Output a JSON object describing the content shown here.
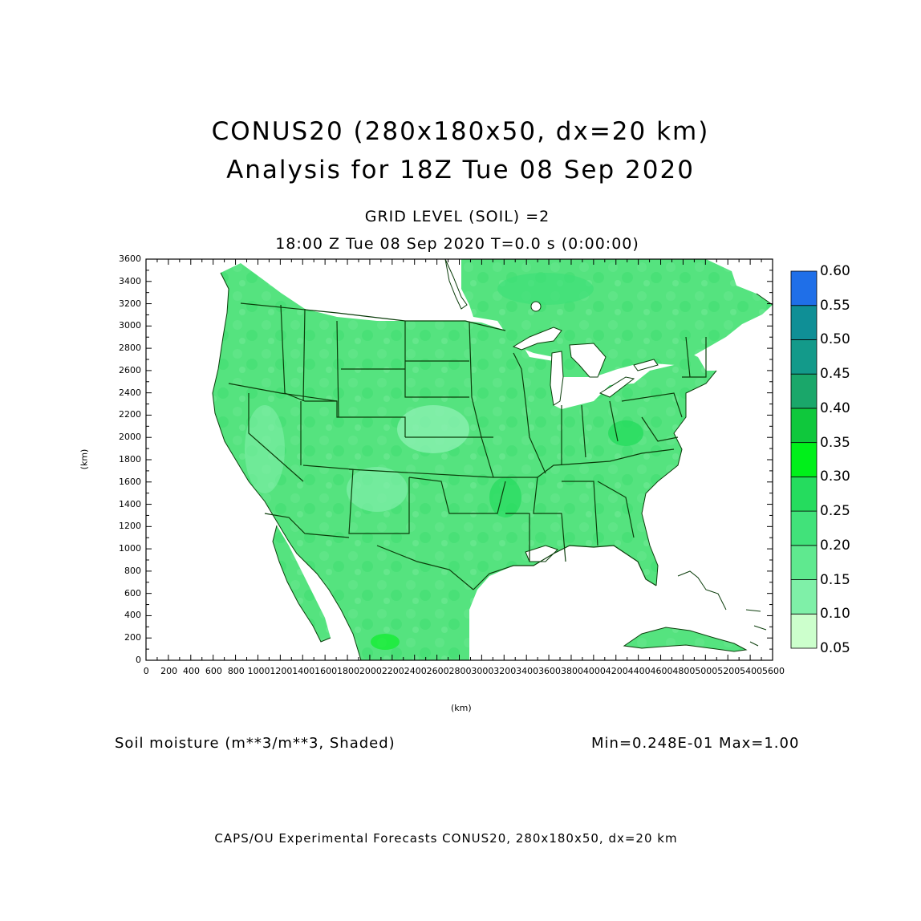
{
  "header": {
    "title_line1": "CONUS20 (280x180x50, dx=20 km)",
    "title_line2": "Analysis for 18Z Tue 08 Sep 2020",
    "grid_level": "GRID LEVEL (SOIL) =2",
    "time_line": "18:00 Z Tue 08 Sep 2020    T=0.0 s (0:00:00)"
  },
  "axes": {
    "x_label": "(km)",
    "y_label": "(km)",
    "x_ticks": [
      "0",
      "200",
      "400",
      "600",
      "800",
      "1000",
      "1200",
      "1400",
      "1600",
      "1800",
      "2000",
      "2200",
      "2400",
      "2600",
      "2800",
      "3000",
      "3200",
      "3400",
      "3600",
      "3800",
      "4000",
      "4200",
      "4400",
      "4600",
      "4800",
      "5000",
      "5200",
      "5400",
      "5600"
    ],
    "y_ticks": [
      "0",
      "200",
      "400",
      "600",
      "800",
      "1000",
      "1200",
      "1400",
      "1600",
      "1800",
      "2000",
      "2200",
      "2400",
      "2600",
      "2800",
      "3000",
      "3200",
      "3400",
      "3600"
    ],
    "x_range": [
      0,
      5600
    ],
    "y_range": [
      0,
      3600
    ]
  },
  "colorbar": {
    "levels": [
      "0.05",
      "0.10",
      "0.15",
      "0.20",
      "0.25",
      "0.30",
      "0.35",
      "0.40",
      "0.45",
      "0.50",
      "0.55",
      "0.60"
    ],
    "colors": [
      "#ccffcc",
      "#a6f7c2",
      "#7ff0a8",
      "#5fe98f",
      "#41e27a",
      "#25dc5e",
      "#00f01a",
      "#0fc83c",
      "#1aa76a",
      "#139a8a",
      "#0f8f96",
      "#1f6fe8"
    ]
  },
  "field": {
    "land_color": "#55e37f",
    "water_color": "#ffffff",
    "boundary_color": "#0b3d0b"
  },
  "caption": {
    "variable": "Soil moisture (m**3/m**3, Shaded)",
    "minmax": "Min=0.248E-01 Max=1.00"
  },
  "footer": {
    "text": "CAPS/OU Experimental Forecasts  CONUS20, 280x180x50, dx=20 km"
  }
}
